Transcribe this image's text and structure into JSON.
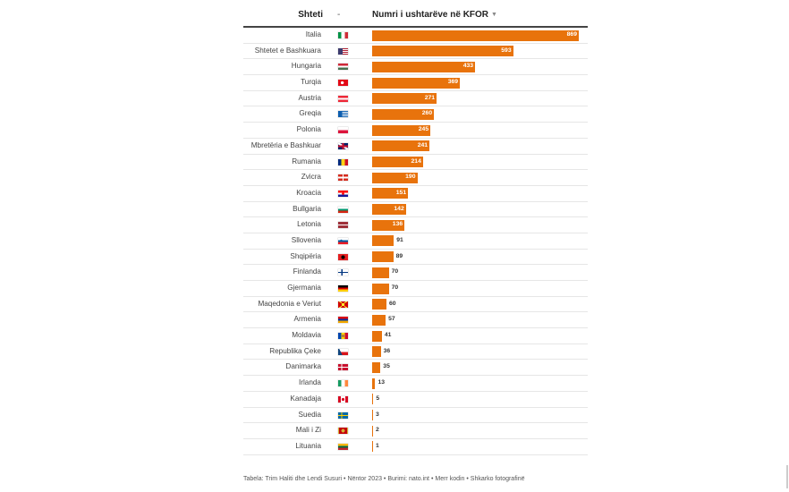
{
  "header": {
    "country_label": "Shteti",
    "flag_label": "-",
    "value_label": "Numri i ushtarëve në KFOR",
    "sort_icon": "▼"
  },
  "chart_data": {
    "type": "bar",
    "orientation": "horizontal",
    "title": "",
    "xlabel": "Numri i ushtarëve në KFOR",
    "ylabel": "Shteti",
    "xlim": [
      0,
      869
    ],
    "grid": false,
    "legend": "none",
    "bar_color": "#e8730c",
    "categories": [
      "Italia",
      "Shtetet e Bashkuara",
      "Hungaria",
      "Turqia",
      "Austria",
      "Greqia",
      "Polonia",
      "Mbretëria e Bashkuar",
      "Rumania",
      "Zvicra",
      "Kroacia",
      "Bullgaria",
      "Letonia",
      "Sllovenia",
      "Shqipëria",
      "Finlanda",
      "Gjermania",
      "Maqedonia e Veriut",
      "Armenia",
      "Moldavia",
      "Republika Çeke",
      "Danimarka",
      "Irlanda",
      "Kanadaja",
      "Suedia",
      "Mali i Zi",
      "Lituania"
    ],
    "values": [
      869,
      593,
      433,
      369,
      271,
      260,
      245,
      241,
      214,
      190,
      151,
      142,
      136,
      91,
      89,
      70,
      70,
      60,
      57,
      41,
      36,
      35,
      13,
      5,
      3,
      2,
      1
    ],
    "flag_icons": [
      "italy-flag-icon",
      "usa-flag-icon",
      "hungary-flag-icon",
      "turkey-flag-icon",
      "austria-flag-icon",
      "greece-flag-icon",
      "poland-flag-icon",
      "uk-flag-icon",
      "romania-flag-icon",
      "switzerland-flag-icon",
      "croatia-flag-icon",
      "bulgaria-flag-icon",
      "latvia-flag-icon",
      "slovenia-flag-icon",
      "albania-flag-icon",
      "finland-flag-icon",
      "germany-flag-icon",
      "north-macedonia-flag-icon",
      "armenia-flag-icon",
      "moldova-flag-icon",
      "czech-flag-icon",
      "denmark-flag-icon",
      "ireland-flag-icon",
      "canada-flag-icon",
      "sweden-flag-icon",
      "montenegro-flag-icon",
      "lithuania-flag-icon"
    ]
  },
  "footer": {
    "credit": "Tabela: Trim Haliti dhe Lendi Susuri • Nëntor 2023 • Burimi: nato.int • ",
    "get_code_label": "Merr kodin",
    "separator": " • ",
    "download_label": "Shkarko fotografinë"
  }
}
